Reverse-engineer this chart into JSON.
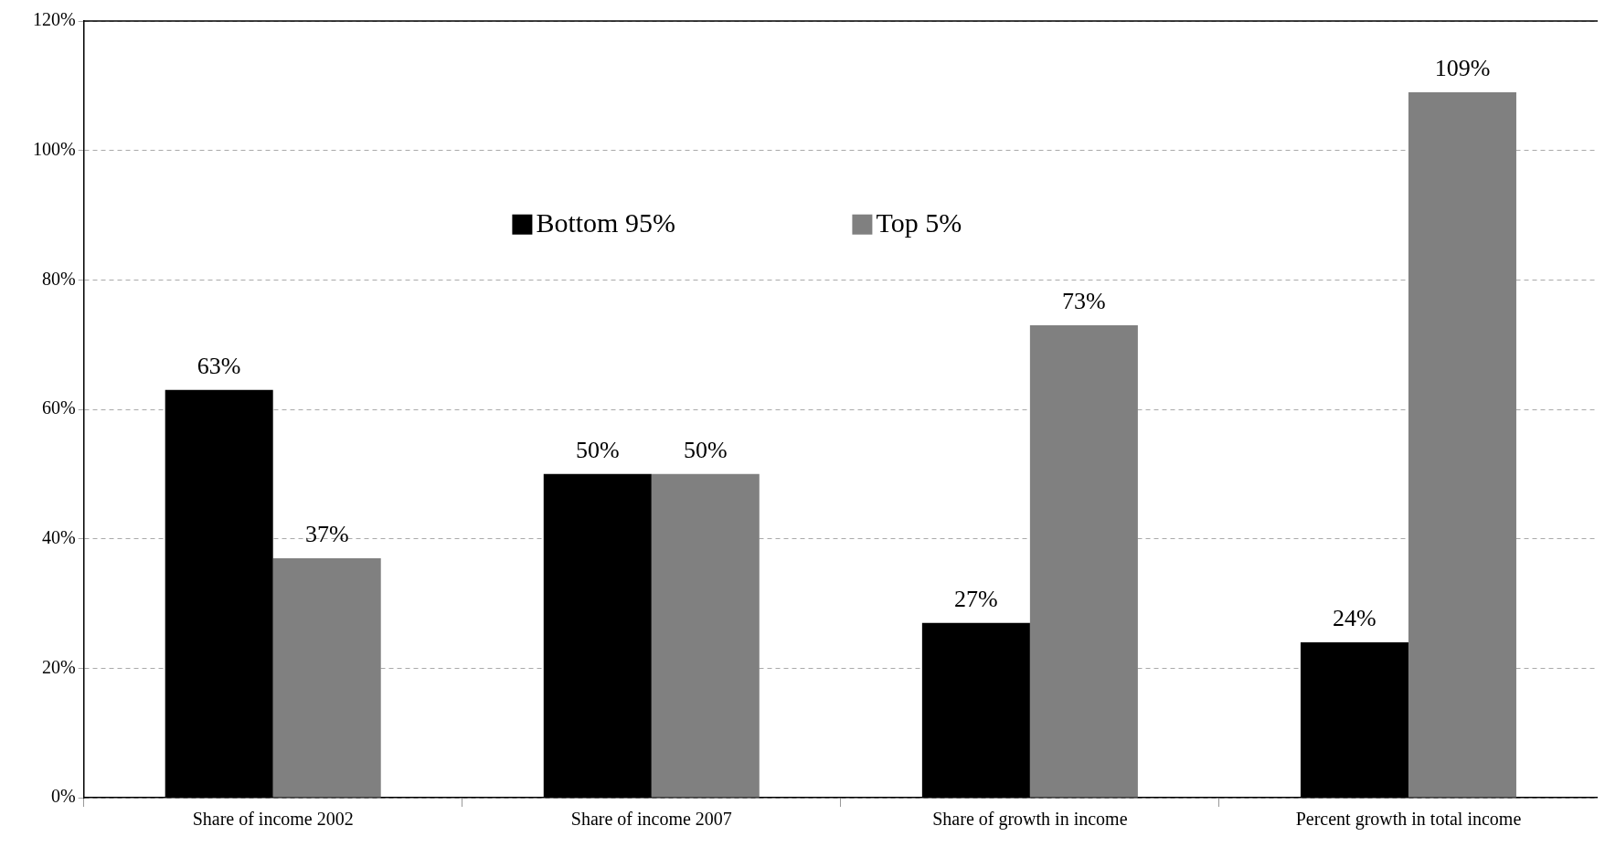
{
  "chart_data": {
    "type": "bar",
    "categories": [
      "Share of income 2002",
      "Share of income 2007",
      "Share of growth in income",
      "Percent growth in total income"
    ],
    "series": [
      {
        "name": "Bottom 95%",
        "color": "#000000",
        "values": [
          63,
          50,
          27,
          24
        ],
        "value_labels": [
          "63%",
          "50%",
          "27%",
          "24%"
        ]
      },
      {
        "name": "Top 5%",
        "color": "#808080",
        "values": [
          37,
          50,
          73,
          109
        ],
        "value_labels": [
          "37%",
          "50%",
          "73%",
          "109%"
        ]
      }
    ],
    "ylim": [
      0,
      120
    ],
    "yticks": [
      {
        "value": 0,
        "label": "0%"
      },
      {
        "value": 20,
        "label": "20%"
      },
      {
        "value": 40,
        "label": "40%"
      },
      {
        "value": 60,
        "label": "60%"
      },
      {
        "value": 80,
        "label": "80%"
      },
      {
        "value": 100,
        "label": "100%"
      },
      {
        "value": 120,
        "label": "120%"
      }
    ],
    "grid": "y",
    "legend": "top"
  }
}
